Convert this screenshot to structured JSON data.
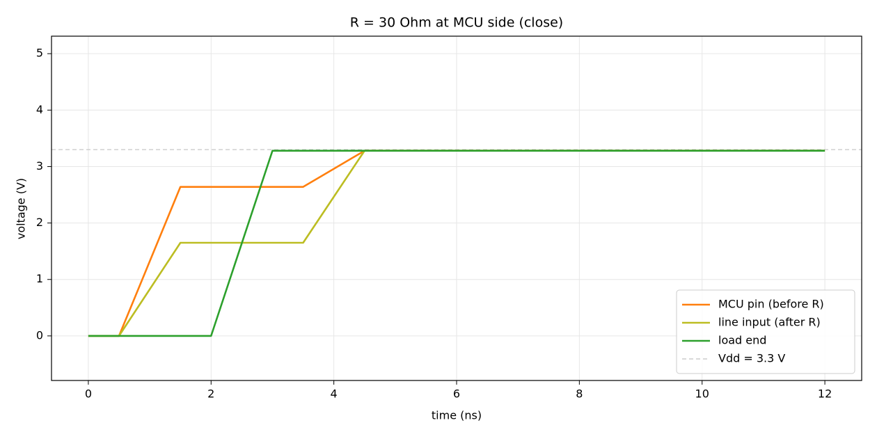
{
  "chart_data": {
    "type": "line",
    "title": "R = 30 Ohm at MCU side (close)",
    "x_label": "time (ns)",
    "y_label": "voltage (V)",
    "series": [
      {
        "name": "MCU pin (before R)",
        "color": "#ff7f0e",
        "x": [
          0,
          0.5,
          1.5,
          3.5,
          4.5,
          12
        ],
        "values": [
          0,
          0,
          2.64,
          2.64,
          3.28,
          3.28
        ]
      },
      {
        "name": "line input (after R)",
        "color": "#bcbd22",
        "x": [
          0,
          0.5,
          1.5,
          3.5,
          4.5,
          12
        ],
        "values": [
          0,
          0,
          1.65,
          1.65,
          3.28,
          3.28
        ]
      },
      {
        "name": "load end",
        "color": "#2ca02c",
        "x": [
          0,
          2,
          3,
          12
        ],
        "values": [
          0,
          0,
          3.28,
          3.28
        ]
      }
    ],
    "hlines": [
      {
        "name": "Vdd = 3.3 V",
        "value": 3.3,
        "color": "#cccccc",
        "dashed": true
      }
    ],
    "xlim": [
      -0.6,
      12.6
    ],
    "ylim": [
      -0.79,
      5.31
    ],
    "xticks": [
      0,
      2,
      4,
      6,
      8,
      10,
      12
    ],
    "yticks": [
      0,
      1,
      2,
      3,
      4,
      5
    ],
    "grid": true,
    "legend": "lower right"
  }
}
